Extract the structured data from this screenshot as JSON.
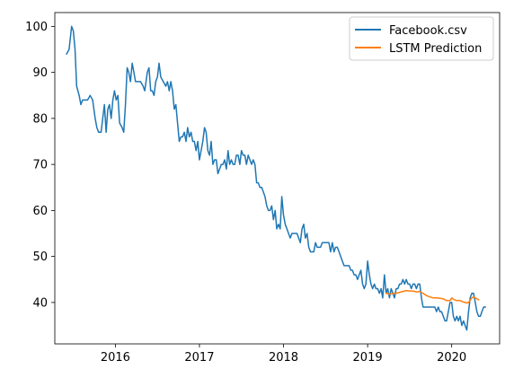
{
  "chart_data": {
    "type": "line",
    "title": "",
    "xlabel": "",
    "ylabel": "",
    "xlim": [
      2015.28,
      2020.57
    ],
    "ylim": [
      31,
      103
    ],
    "grid": false,
    "legend_position": "top-right",
    "x_ticks": [
      {
        "value": 2016,
        "label": "2016"
      },
      {
        "value": 2017,
        "label": "2017"
      },
      {
        "value": 2018,
        "label": "2018"
      },
      {
        "value": 2019,
        "label": "2019"
      },
      {
        "value": 2020,
        "label": "2020"
      }
    ],
    "y_ticks": [
      {
        "value": 40,
        "label": "40"
      },
      {
        "value": 50,
        "label": "50"
      },
      {
        "value": 60,
        "label": "60"
      },
      {
        "value": 70,
        "label": "70"
      },
      {
        "value": 80,
        "label": "80"
      },
      {
        "value": 90,
        "label": "90"
      },
      {
        "value": 100,
        "label": "100"
      }
    ],
    "series": [
      {
        "name": "Facebook.csv",
        "color": "#1f77b4",
        "points": [
          [
            2015.42,
            94
          ],
          [
            2015.45,
            95
          ],
          [
            2015.48,
            100
          ],
          [
            2015.5,
            99
          ],
          [
            2015.52,
            95
          ],
          [
            2015.54,
            87
          ],
          [
            2015.57,
            85
          ],
          [
            2015.59,
            83
          ],
          [
            2015.61,
            84
          ],
          [
            2015.64,
            84
          ],
          [
            2015.67,
            84
          ],
          [
            2015.7,
            85
          ],
          [
            2015.73,
            84
          ],
          [
            2015.76,
            80
          ],
          [
            2015.78,
            78
          ],
          [
            2015.8,
            77
          ],
          [
            2015.83,
            77
          ],
          [
            2015.85,
            80
          ],
          [
            2015.87,
            83
          ],
          [
            2015.89,
            77
          ],
          [
            2015.91,
            82
          ],
          [
            2015.93,
            83
          ],
          [
            2015.95,
            80
          ],
          [
            2015.97,
            84
          ],
          [
            2015.99,
            86
          ],
          [
            2016.01,
            84
          ],
          [
            2016.03,
            85
          ],
          [
            2016.05,
            79
          ],
          [
            2016.08,
            78
          ],
          [
            2016.1,
            77
          ],
          [
            2016.12,
            83
          ],
          [
            2016.14,
            91
          ],
          [
            2016.16,
            90
          ],
          [
            2016.18,
            88
          ],
          [
            2016.2,
            92
          ],
          [
            2016.22,
            90
          ],
          [
            2016.24,
            88
          ],
          [
            2016.27,
            88
          ],
          [
            2016.3,
            88
          ],
          [
            2016.33,
            87
          ],
          [
            2016.35,
            86
          ],
          [
            2016.38,
            90
          ],
          [
            2016.4,
            91
          ],
          [
            2016.42,
            86
          ],
          [
            2016.44,
            86
          ],
          [
            2016.46,
            85
          ],
          [
            2016.48,
            88
          ],
          [
            2016.5,
            89
          ],
          [
            2016.52,
            92
          ],
          [
            2016.54,
            89
          ],
          [
            2016.57,
            88
          ],
          [
            2016.6,
            87
          ],
          [
            2016.62,
            88
          ],
          [
            2016.64,
            86
          ],
          [
            2016.66,
            88
          ],
          [
            2016.68,
            86
          ],
          [
            2016.7,
            82
          ],
          [
            2016.72,
            83
          ],
          [
            2016.74,
            79
          ],
          [
            2016.76,
            75
          ],
          [
            2016.78,
            76
          ],
          [
            2016.8,
            76
          ],
          [
            2016.82,
            77
          ],
          [
            2016.84,
            75
          ],
          [
            2016.86,
            78
          ],
          [
            2016.88,
            76
          ],
          [
            2016.9,
            77
          ],
          [
            2016.92,
            75
          ],
          [
            2016.94,
            75
          ],
          [
            2016.96,
            73
          ],
          [
            2016.98,
            75
          ],
          [
            2017.0,
            71
          ],
          [
            2017.02,
            73
          ],
          [
            2017.04,
            75
          ],
          [
            2017.06,
            78
          ],
          [
            2017.08,
            77
          ],
          [
            2017.1,
            73
          ],
          [
            2017.12,
            72
          ],
          [
            2017.14,
            75
          ],
          [
            2017.16,
            70
          ],
          [
            2017.18,
            71
          ],
          [
            2017.2,
            71
          ],
          [
            2017.22,
            68
          ],
          [
            2017.24,
            69
          ],
          [
            2017.26,
            70
          ],
          [
            2017.28,
            70
          ],
          [
            2017.3,
            71
          ],
          [
            2017.32,
            69
          ],
          [
            2017.34,
            73
          ],
          [
            2017.36,
            70
          ],
          [
            2017.38,
            71
          ],
          [
            2017.4,
            70
          ],
          [
            2017.42,
            70
          ],
          [
            2017.44,
            72
          ],
          [
            2017.46,
            72
          ],
          [
            2017.48,
            70
          ],
          [
            2017.5,
            73
          ],
          [
            2017.52,
            72
          ],
          [
            2017.54,
            72
          ],
          [
            2017.56,
            70
          ],
          [
            2017.58,
            72
          ],
          [
            2017.6,
            71
          ],
          [
            2017.62,
            70
          ],
          [
            2017.64,
            71
          ],
          [
            2017.66,
            70
          ],
          [
            2017.68,
            66
          ],
          [
            2017.7,
            66
          ],
          [
            2017.72,
            65
          ],
          [
            2017.74,
            65
          ],
          [
            2017.76,
            64
          ],
          [
            2017.78,
            63
          ],
          [
            2017.8,
            61
          ],
          [
            2017.82,
            60
          ],
          [
            2017.84,
            60
          ],
          [
            2017.86,
            61
          ],
          [
            2017.88,
            58
          ],
          [
            2017.9,
            60
          ],
          [
            2017.92,
            56
          ],
          [
            2017.94,
            57
          ],
          [
            2017.96,
            56
          ],
          [
            2017.98,
            63
          ],
          [
            2018.0,
            59
          ],
          [
            2018.02,
            57
          ],
          [
            2018.04,
            56
          ],
          [
            2018.06,
            55
          ],
          [
            2018.08,
            54
          ],
          [
            2018.1,
            55
          ],
          [
            2018.12,
            55
          ],
          [
            2018.14,
            55
          ],
          [
            2018.16,
            55
          ],
          [
            2018.18,
            54
          ],
          [
            2018.2,
            53
          ],
          [
            2018.22,
            56
          ],
          [
            2018.24,
            57
          ],
          [
            2018.26,
            54
          ],
          [
            2018.28,
            55
          ],
          [
            2018.3,
            52
          ],
          [
            2018.32,
            51
          ],
          [
            2018.34,
            51
          ],
          [
            2018.36,
            51
          ],
          [
            2018.38,
            53
          ],
          [
            2018.4,
            52
          ],
          [
            2018.42,
            52
          ],
          [
            2018.44,
            52
          ],
          [
            2018.46,
            53
          ],
          [
            2018.48,
            53
          ],
          [
            2018.5,
            53
          ],
          [
            2018.52,
            53
          ],
          [
            2018.54,
            53
          ],
          [
            2018.56,
            51
          ],
          [
            2018.58,
            53
          ],
          [
            2018.6,
            51
          ],
          [
            2018.62,
            52
          ],
          [
            2018.64,
            52
          ],
          [
            2018.66,
            51
          ],
          [
            2018.68,
            50
          ],
          [
            2018.7,
            49
          ],
          [
            2018.72,
            48
          ],
          [
            2018.74,
            48
          ],
          [
            2018.76,
            48
          ],
          [
            2018.78,
            48
          ],
          [
            2018.8,
            47
          ],
          [
            2018.82,
            47
          ],
          [
            2018.84,
            46
          ],
          [
            2018.86,
            46
          ],
          [
            2018.88,
            45
          ],
          [
            2018.9,
            46
          ],
          [
            2018.92,
            47
          ],
          [
            2018.94,
            44
          ],
          [
            2018.96,
            43
          ],
          [
            2018.98,
            44
          ],
          [
            2019.0,
            49
          ],
          [
            2019.02,
            46
          ],
          [
            2019.04,
            44
          ],
          [
            2019.06,
            43
          ],
          [
            2019.08,
            44
          ],
          [
            2019.1,
            43
          ],
          [
            2019.12,
            43
          ],
          [
            2019.14,
            42
          ],
          [
            2019.16,
            43
          ],
          [
            2019.18,
            41
          ],
          [
            2019.2,
            46
          ],
          [
            2019.22,
            42
          ],
          [
            2019.24,
            43
          ],
          [
            2019.26,
            41
          ],
          [
            2019.28,
            43
          ],
          [
            2019.3,
            42
          ],
          [
            2019.32,
            41
          ],
          [
            2019.34,
            43
          ],
          [
            2019.36,
            43
          ],
          [
            2019.38,
            44
          ],
          [
            2019.4,
            44
          ],
          [
            2019.42,
            45
          ],
          [
            2019.44,
            44
          ],
          [
            2019.46,
            45
          ],
          [
            2019.48,
            44
          ],
          [
            2019.5,
            44
          ],
          [
            2019.52,
            43
          ],
          [
            2019.54,
            44
          ],
          [
            2019.56,
            44
          ],
          [
            2019.58,
            43
          ],
          [
            2019.6,
            44
          ],
          [
            2019.62,
            44
          ],
          [
            2019.64,
            41
          ],
          [
            2019.66,
            39
          ],
          [
            2019.68,
            39
          ],
          [
            2019.7,
            39
          ],
          [
            2019.72,
            39
          ],
          [
            2019.74,
            39
          ],
          [
            2019.76,
            39
          ],
          [
            2019.78,
            39
          ],
          [
            2019.8,
            39
          ],
          [
            2019.82,
            38
          ],
          [
            2019.84,
            39
          ],
          [
            2019.86,
            38
          ],
          [
            2019.88,
            38
          ],
          [
            2019.9,
            37
          ],
          [
            2019.92,
            36
          ],
          [
            2019.94,
            36
          ],
          [
            2019.96,
            38
          ],
          [
            2019.98,
            40
          ],
          [
            2020.0,
            40
          ],
          [
            2020.02,
            37
          ],
          [
            2020.04,
            36
          ],
          [
            2020.06,
            37
          ],
          [
            2020.08,
            36
          ],
          [
            2020.1,
            37
          ],
          [
            2020.12,
            35
          ],
          [
            2020.14,
            36
          ],
          [
            2020.16,
            35
          ],
          [
            2020.18,
            34
          ],
          [
            2020.2,
            38
          ],
          [
            2020.22,
            41
          ],
          [
            2020.24,
            42
          ],
          [
            2020.26,
            42
          ],
          [
            2020.28,
            40
          ],
          [
            2020.3,
            38
          ],
          [
            2020.32,
            37
          ],
          [
            2020.34,
            37
          ],
          [
            2020.36,
            38
          ],
          [
            2020.38,
            39
          ],
          [
            2020.4,
            39
          ]
        ]
      },
      {
        "name": "LSTM Prediction",
        "color": "#ff7f0e",
        "points": [
          [
            2019.22,
            42
          ],
          [
            2019.26,
            41.8
          ],
          [
            2019.3,
            42.0
          ],
          [
            2019.34,
            42.0
          ],
          [
            2019.38,
            42.2
          ],
          [
            2019.42,
            42.4
          ],
          [
            2019.46,
            42.6
          ],
          [
            2019.5,
            42.5
          ],
          [
            2019.54,
            42.5
          ],
          [
            2019.58,
            42.3
          ],
          [
            2019.62,
            42.4
          ],
          [
            2019.66,
            42.0
          ],
          [
            2019.7,
            41.5
          ],
          [
            2019.74,
            41.2
          ],
          [
            2019.78,
            41.0
          ],
          [
            2019.82,
            41.0
          ],
          [
            2019.86,
            40.9
          ],
          [
            2019.9,
            40.8
          ],
          [
            2019.94,
            40.4
          ],
          [
            2019.98,
            40.4
          ],
          [
            2020.0,
            41.0
          ],
          [
            2020.02,
            40.7
          ],
          [
            2020.06,
            40.4
          ],
          [
            2020.1,
            40.4
          ],
          [
            2020.14,
            40.1
          ],
          [
            2020.18,
            39.9
          ],
          [
            2020.2,
            40.0
          ],
          [
            2020.22,
            40.5
          ],
          [
            2020.24,
            41.0
          ],
          [
            2020.26,
            41.2
          ],
          [
            2020.28,
            41.0
          ],
          [
            2020.3,
            40.8
          ],
          [
            2020.32,
            40.6
          ]
        ]
      }
    ]
  }
}
